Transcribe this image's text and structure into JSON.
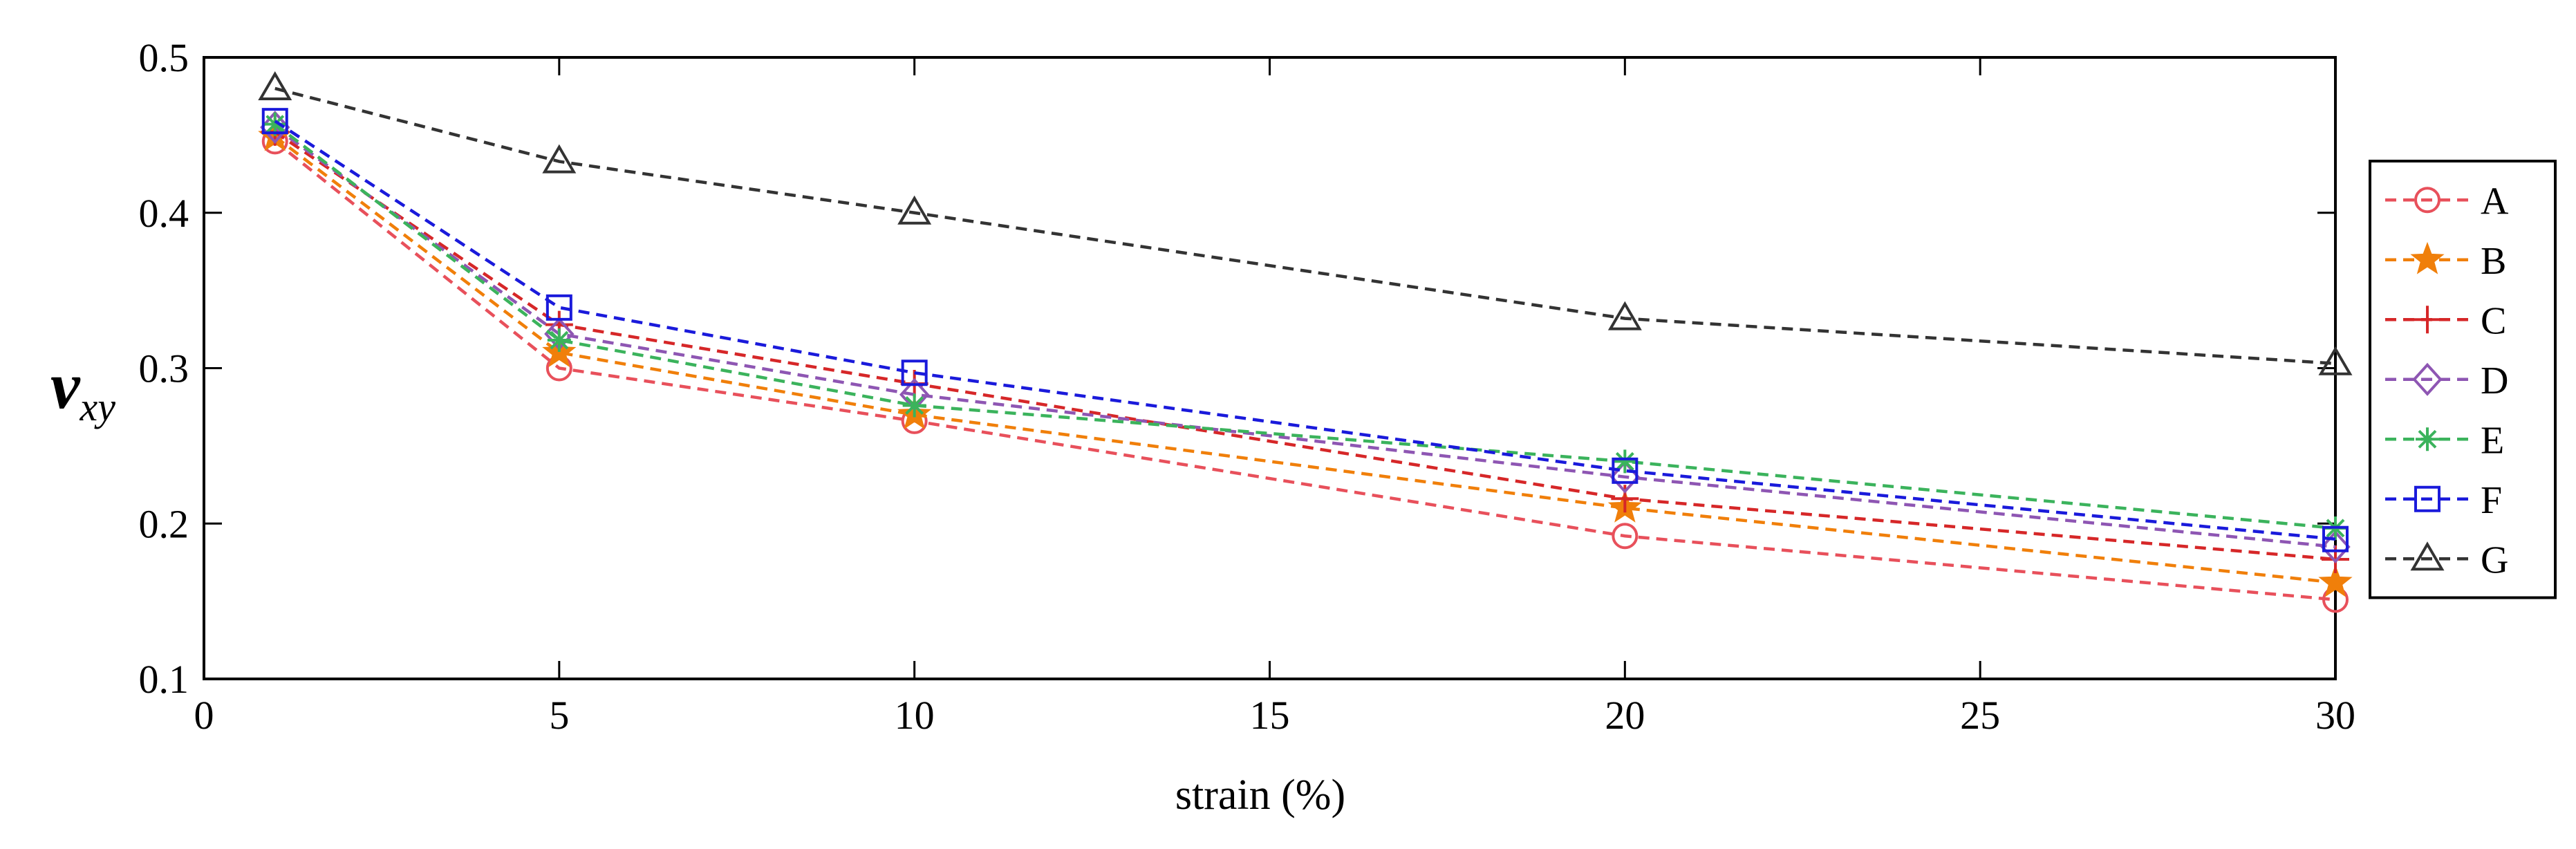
{
  "chart_data": {
    "type": "line",
    "title": "",
    "xlabel": "strain (%)",
    "ylabel_symbol": "ν",
    "ylabel_subscript": "xy",
    "xlim": [
      0,
      30
    ],
    "ylim": [
      0.1,
      0.5
    ],
    "xticks": [
      0,
      5,
      10,
      15,
      20,
      25,
      30
    ],
    "yticks": [
      0.1,
      0.2,
      0.3,
      0.4,
      0.5
    ],
    "xtick_labels": [
      "0",
      "5",
      "10",
      "15",
      "20",
      "25",
      "30"
    ],
    "ytick_labels": [
      "0.1",
      "0.2",
      "0.3",
      "0.4",
      "0.5"
    ],
    "x": [
      1,
      5,
      10,
      20,
      30
    ],
    "grid": false,
    "legend_position": "right",
    "series": [
      {
        "name": "A",
        "values": [
          0.446,
          0.3,
          0.266,
          0.192,
          0.151
        ],
        "color": "#e8505b",
        "marker": "circle"
      },
      {
        "name": "B",
        "values": [
          0.449,
          0.31,
          0.27,
          0.21,
          0.162
        ],
        "color": "#f07f0a",
        "marker": "star"
      },
      {
        "name": "C",
        "values": [
          0.452,
          0.328,
          0.29,
          0.216,
          0.177
        ],
        "color": "#d62728",
        "marker": "plus"
      },
      {
        "name": "D",
        "values": [
          0.455,
          0.322,
          0.283,
          0.23,
          0.185
        ],
        "color": "#8e56b3",
        "marker": "diamond"
      },
      {
        "name": "E",
        "values": [
          0.457,
          0.318,
          0.276,
          0.24,
          0.197
        ],
        "color": "#3bb35c",
        "marker": "asterisk"
      },
      {
        "name": "F",
        "values": [
          0.459,
          0.339,
          0.297,
          0.234,
          0.19
        ],
        "color": "#1a1adb",
        "marker": "square"
      },
      {
        "name": "G",
        "values": [
          0.48,
          0.433,
          0.4,
          0.332,
          0.303
        ],
        "color": "#333333",
        "marker": "triangle"
      }
    ]
  }
}
